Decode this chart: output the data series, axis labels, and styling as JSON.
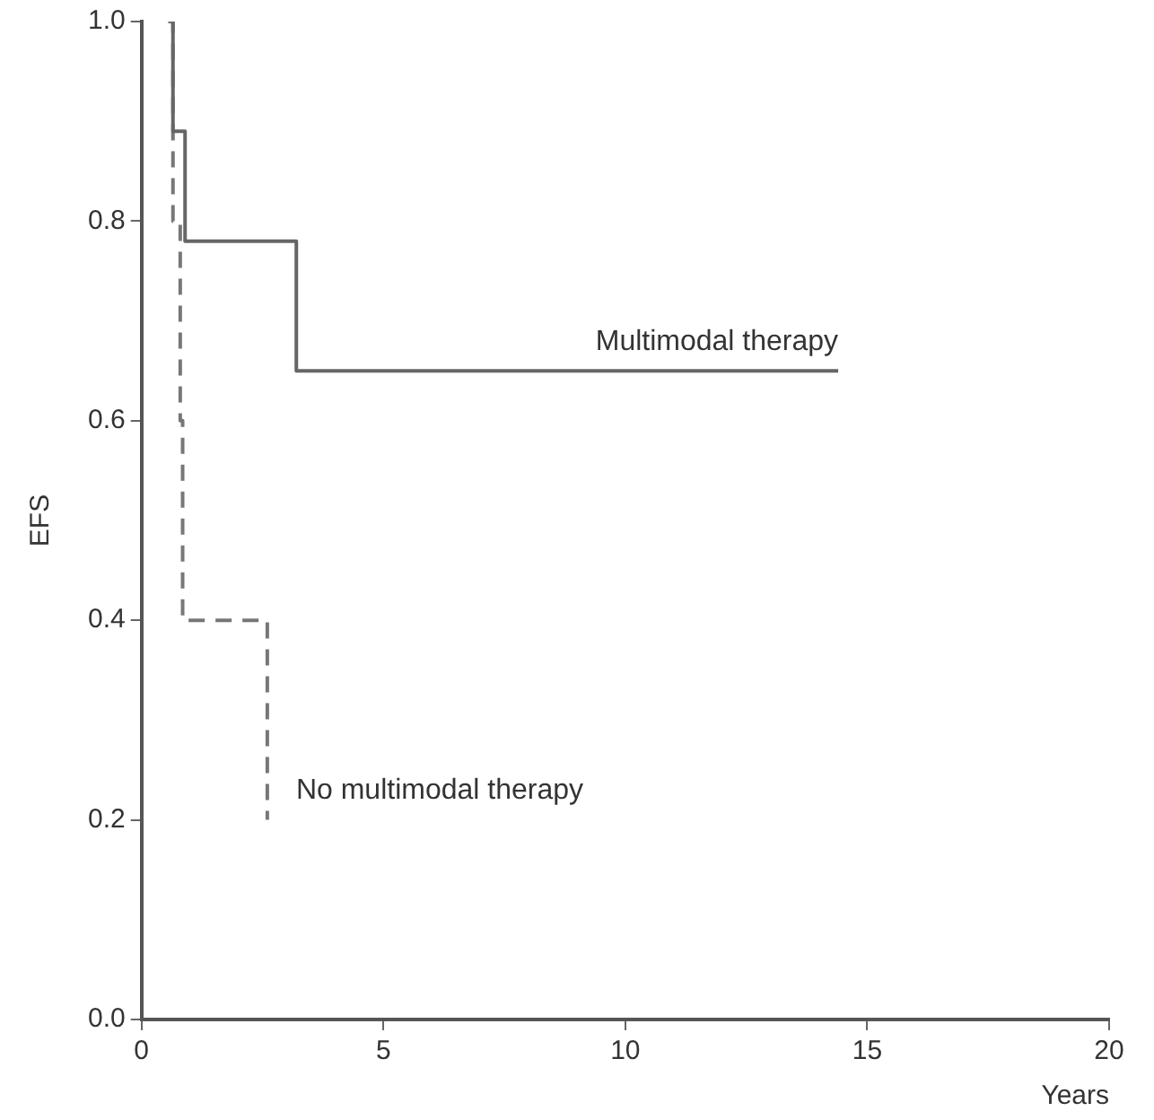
{
  "chart_data": {
    "type": "step",
    "xlabel": "Years",
    "ylabel": "EFS",
    "xlim": [
      0,
      20
    ],
    "xticks": [
      0,
      5,
      10,
      15,
      20
    ],
    "ylim": [
      0,
      1
    ],
    "yticks": [
      {
        "value": 0,
        "label": "0.0"
      },
      {
        "value": 0.2,
        "label": "0.2"
      },
      {
        "value": 0.4,
        "label": "0.4"
      },
      {
        "value": 0.6,
        "label": "0.6"
      },
      {
        "value": 0.8,
        "label": "0.8"
      },
      {
        "value": 1,
        "label": "1.0"
      }
    ],
    "grid": false,
    "legend": false,
    "marker": "none",
    "series": [
      {
        "name": "Multimodal therapy",
        "color": "#666666",
        "line_style": "solid",
        "x": [
          0.6,
          0.65,
          0.9,
          3.2,
          14.4
        ],
        "values": [
          1.0,
          0.89,
          0.78,
          0.65,
          0.65
        ]
      },
      {
        "name": "No multimodal therapy",
        "color": "#777777",
        "line_style": "dashed",
        "x": [
          0.55,
          0.65,
          0.8,
          0.85,
          2.6
        ],
        "values": [
          1.0,
          0.8,
          0.6,
          0.4,
          0.2
        ]
      }
    ]
  }
}
